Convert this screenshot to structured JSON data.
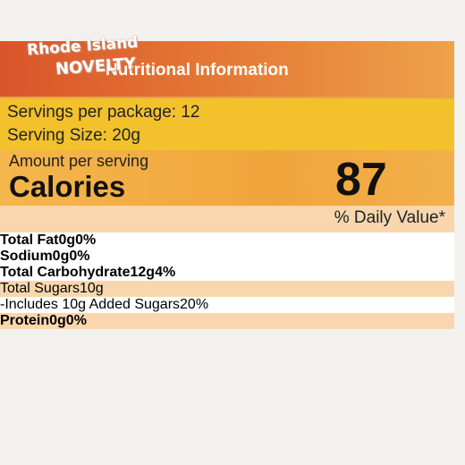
{
  "watermark": {
    "line1": "Rhode Island",
    "line2": "NOVELTY"
  },
  "header": {
    "title": "Nutritional Information"
  },
  "servings": {
    "per_package": "Servings per package: 12",
    "size": "Serving Size: 20g"
  },
  "calories": {
    "caption": "Amount per serving",
    "label": "Calories",
    "value": 87
  },
  "daily_value_heading": "% Daily Value*",
  "table": {
    "rows": [
      {
        "name": "Total Fat",
        "amount": "0g",
        "dv": "0%"
      },
      {
        "name": "Sodium",
        "amount": "0g",
        "dv": "0%"
      },
      {
        "name": "Total Carbohydrate",
        "amount": "12g",
        "dv": "4%"
      },
      {
        "name": "Total Sugars",
        "amount": "10g"
      },
      {
        "name": "-Includes 10g Added Sugars",
        "dv": "20%"
      },
      {
        "name": "Protein",
        "amount": "0g",
        "dv": "0%"
      }
    ]
  }
}
